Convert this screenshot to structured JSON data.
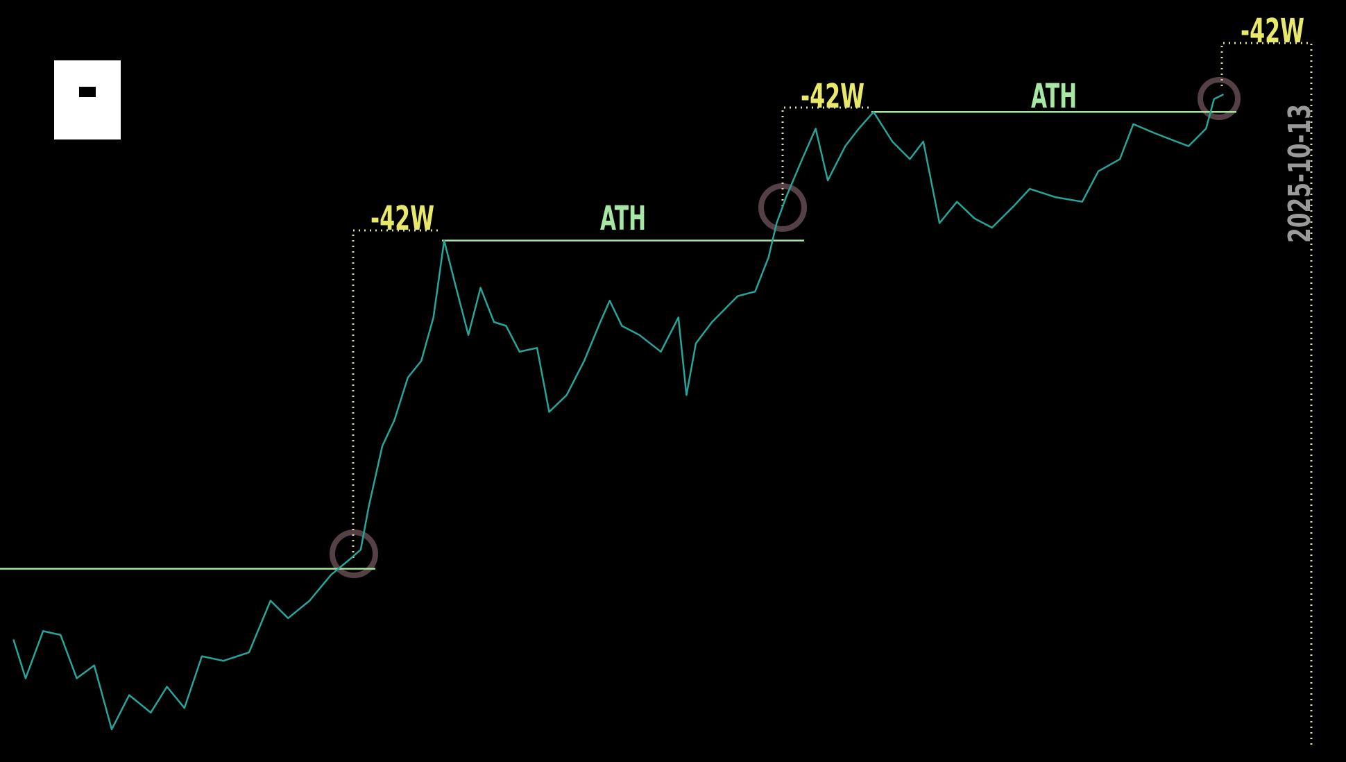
{
  "chart_data": {
    "type": "line",
    "x": [
      1.0,
      1.9,
      3.2,
      4.5,
      5.7,
      7.0,
      8.3,
      9.6,
      11.2,
      12.4,
      13.7,
      15.0,
      16.6,
      18.5,
      20.1,
      21.4,
      23.0,
      24.6,
      26.1,
      26.8,
      27.4,
      28.4,
      29.3,
      30.3,
      31.3,
      32.2,
      33.0,
      33.8,
      34.8,
      35.7,
      36.7,
      37.6,
      38.6,
      39.9,
      40.8,
      42.1,
      43.4,
      44.6,
      45.3,
      46.2,
      47.5,
      49.1,
      50.4,
      51.0,
      51.7,
      52.9,
      54.8,
      56.1,
      57.1,
      57.7,
      58.4,
      59.6,
      60.6,
      61.5,
      62.8,
      63.8,
      64.9,
      66.3,
      67.6,
      68.6,
      69.8,
      71.1,
      72.4,
      73.7,
      75.3,
      76.5,
      78.4,
      80.4,
      81.6,
      83.2,
      84.2,
      85.8,
      87.4,
      88.3,
      89.6,
      90.2,
      90.9
    ],
    "values": [
      16.0,
      10.9,
      17.1,
      16.6,
      10.9,
      12.6,
      4.2,
      8.7,
      6.4,
      9.8,
      7.0,
      13.8,
      13.2,
      14.3,
      21.1,
      18.8,
      21.1,
      24.5,
      26.7,
      27.8,
      33.5,
      41.4,
      44.8,
      50.4,
      52.6,
      58.3,
      68.4,
      62.8,
      56.0,
      62.2,
      57.7,
      57.2,
      53.8,
      54.3,
      45.9,
      48.1,
      52.6,
      57.7,
      60.5,
      57.2,
      56.0,
      53.8,
      58.3,
      48.1,
      54.9,
      57.7,
      61.1,
      61.7,
      66.2,
      70.7,
      74.1,
      79.1,
      83.1,
      76.3,
      80.8,
      83.1,
      85.3,
      81.4,
      79.1,
      81.4,
      70.7,
      73.5,
      71.3,
      70.1,
      72.9,
      75.2,
      74.1,
      73.5,
      77.5,
      79.1,
      83.7,
      82.5,
      81.4,
      80.8,
      83.1,
      87.0,
      87.6
    ],
    "color": "#26a69a",
    "xlim": [
      0,
      100
    ],
    "ylim": [
      0,
      100
    ],
    "levels": [
      25.3,
      68.4,
      85.3
    ],
    "level_color": "#a8e6a3",
    "annotations": [
      "-42W",
      "-42W",
      "-42W",
      "ATH",
      "ATH",
      "2025-10-13"
    ]
  }
}
